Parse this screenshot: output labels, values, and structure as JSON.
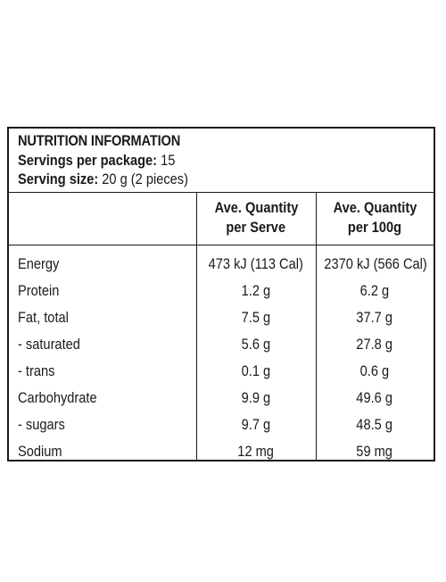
{
  "header": {
    "title": "NUTRITION INFORMATION",
    "servings_label": "Servings per package:",
    "servings_value": "15",
    "serving_size_label": "Serving size:",
    "serving_size_value": "20 g (2 pieces)"
  },
  "columns": {
    "per_serve_line1": "Ave. Quantity",
    "per_serve_line2": "per Serve",
    "per_100g_line1": "Ave. Quantity",
    "per_100g_line2": "per 100g"
  },
  "rows": [
    {
      "name": "Energy",
      "per_serve": "473 kJ (113 Cal)",
      "per_100g": "2370 kJ (566 Cal)"
    },
    {
      "name": "Protein",
      "per_serve": "1.2 g",
      "per_100g": "6.2 g"
    },
    {
      "name": "Fat, total",
      "per_serve": "7.5 g",
      "per_100g": "37.7 g"
    },
    {
      "name": "- saturated",
      "per_serve": "5.6 g",
      "per_100g": "27.8 g"
    },
    {
      "name": "- trans",
      "per_serve": "0.1 g",
      "per_100g": "0.6 g"
    },
    {
      "name": "Carbohydrate",
      "per_serve": "9.9 g",
      "per_100g": "49.6 g"
    },
    {
      "name": "- sugars",
      "per_serve": "9.7 g",
      "per_100g": "48.5 g"
    },
    {
      "name": "Sodium",
      "per_serve": "12 mg",
      "per_100g": "59 mg"
    }
  ]
}
